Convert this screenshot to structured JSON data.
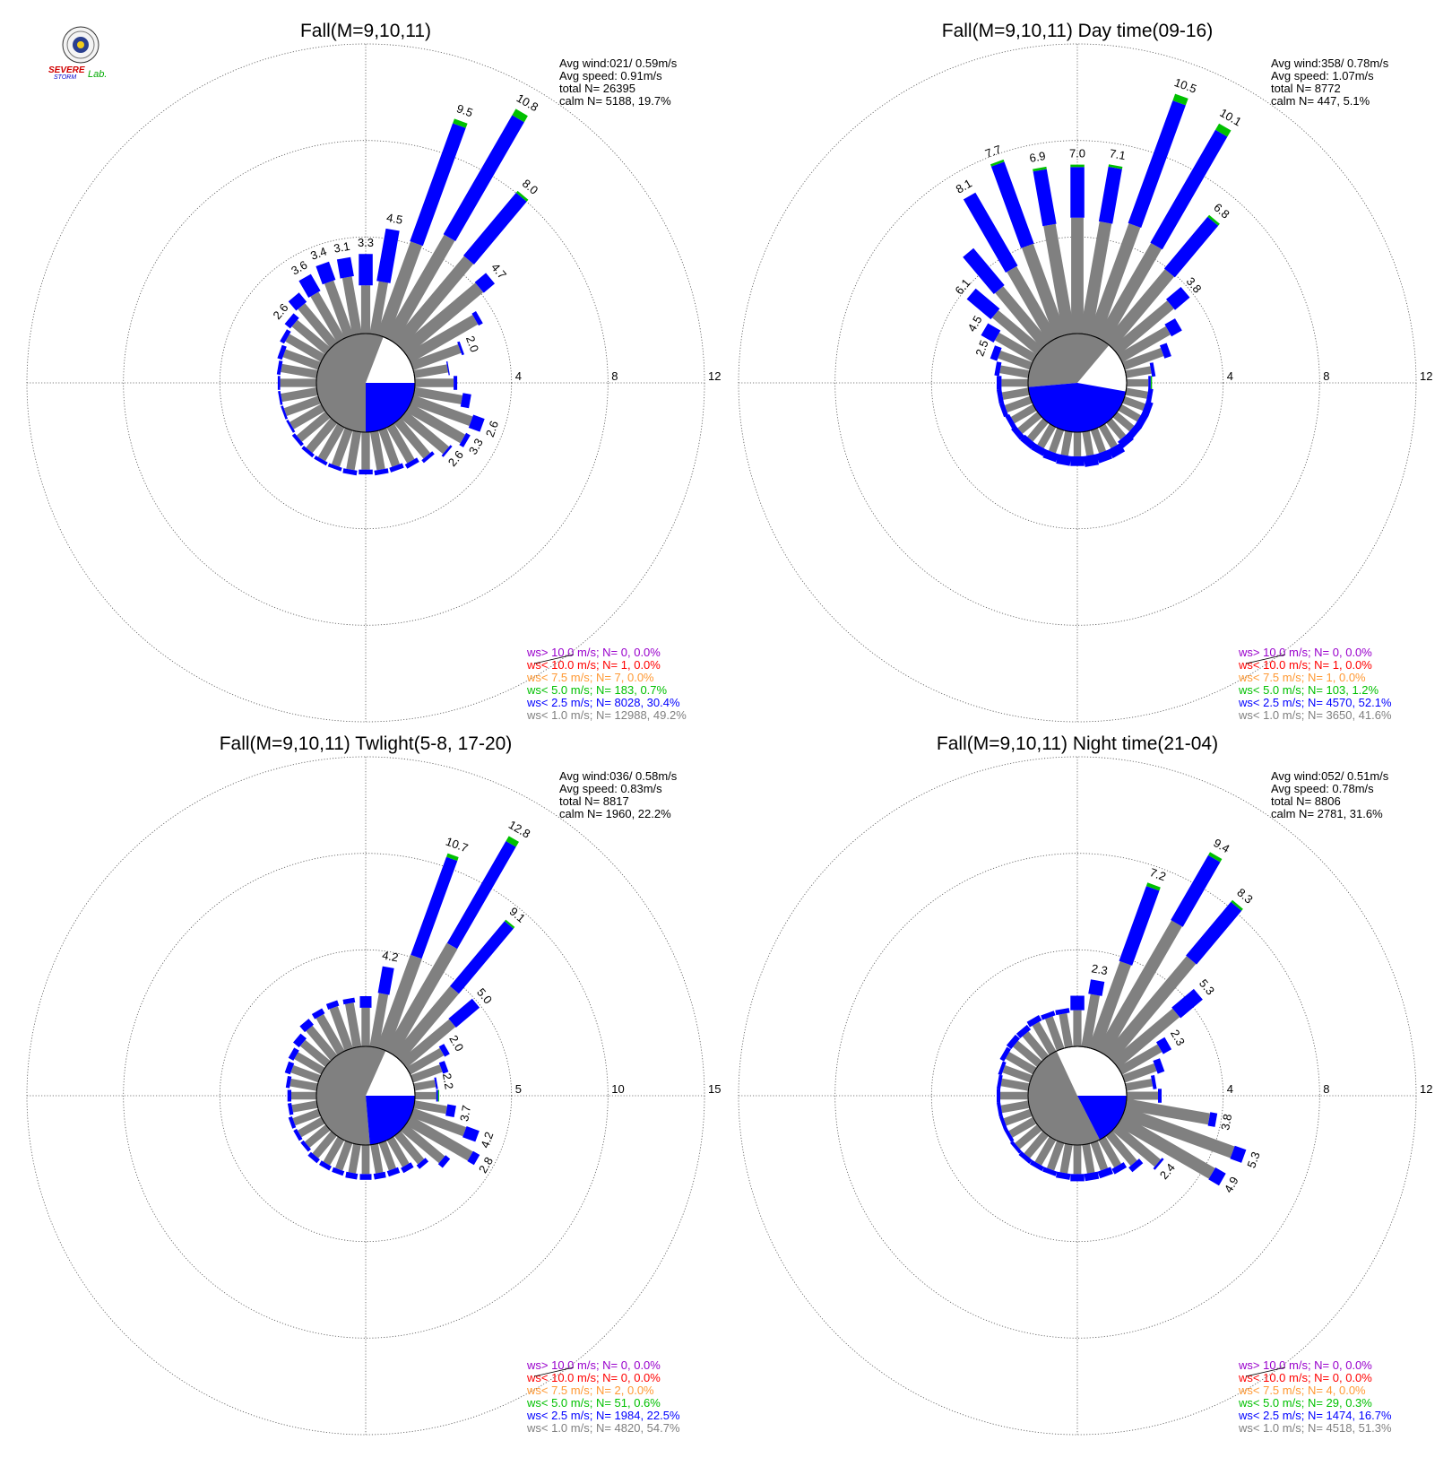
{
  "logo": {
    "line1": "SEVERE",
    "line2": "STORM",
    "line3": "Lab."
  },
  "colors": {
    "gray": "#808080",
    "blue": "#0000ff",
    "green": "#00c000",
    "orange": "#ff9933",
    "red": "#ff0000",
    "purple": "#9900cc"
  },
  "chart_data": [
    {
      "type": "windrose",
      "title": "Fall(M=9,10,11)",
      "rmax": 12,
      "ring_labels": [
        "4",
        "8",
        "12"
      ],
      "stats": [
        "Avg wind:021/ 0.59m/s",
        "Avg speed: 0.91m/s",
        "total N=      26395",
        "calm N=   5188,  19.7%"
      ],
      "legend": [
        {
          "label": "ws> 10.0 m/s; N=     0,  0.0%",
          "color": "#9900cc"
        },
        {
          "label": "ws< 10.0 m/s; N=     1,  0.0%",
          "color": "#ff0000"
        },
        {
          "label": "ws<  7.5 m/s; N=     7,  0.0%",
          "color": "#ff9933"
        },
        {
          "label": "ws<  5.0 m/s; N=   183,  0.7%",
          "color": "#00c000"
        },
        {
          "label": "ws<  2.5 m/s; N=  8028, 30.4%",
          "color": "#0000ff"
        },
        {
          "label": "ws<  1.0 m/s; N= 12988, 49.2%",
          "color": "#808080"
        }
      ],
      "directions": [
        0,
        10,
        20,
        30,
        40,
        50,
        60,
        70,
        80,
        90,
        100,
        110,
        120,
        130,
        140,
        150,
        160,
        170,
        180,
        190,
        200,
        210,
        220,
        230,
        240,
        250,
        260,
        270,
        280,
        290,
        300,
        310,
        320,
        330,
        340,
        350
      ],
      "gray": [
        2.0,
        2.2,
        4.1,
        4.9,
        4.6,
        4.1,
        3.2,
        2.1,
        1.4,
        1.6,
        2.0,
        2.6,
        2.6,
        2.3,
        1.9,
        1.7,
        1.6,
        1.6,
        1.55,
        1.6,
        1.6,
        1.6,
        1.6,
        1.55,
        1.5,
        1.5,
        1.5,
        1.5,
        1.5,
        1.55,
        1.7,
        1.8,
        2.1,
        2.2,
        2.4,
        2.4
      ],
      "blue": [
        1.3,
        2.2,
        5.2,
        5.7,
        3.4,
        0.6,
        0.2,
        0.1,
        0.05,
        0.15,
        0.35,
        0.5,
        0.2,
        0.1,
        0.15,
        0.2,
        0.2,
        0.2,
        0.2,
        0.2,
        0.15,
        0.15,
        0.15,
        0.15,
        0.1,
        0.1,
        0.1,
        0.1,
        0.15,
        0.2,
        0.2,
        0.3,
        0.5,
        0.8,
        0.8,
        0.8
      ],
      "green": [
        0,
        0,
        0.2,
        0.3,
        0.1,
        0,
        0,
        0,
        0,
        0,
        0,
        0,
        0,
        0,
        0,
        0,
        0,
        0,
        0,
        0,
        0,
        0,
        0,
        0,
        0,
        0,
        0,
        0,
        0,
        0,
        0,
        0,
        0,
        0,
        0,
        0
      ],
      "labels": [
        "3.3",
        "4.5",
        "9.5",
        "10.8",
        "8.0",
        "4.7",
        "",
        "2.0",
        "",
        "",
        "",
        "2.6",
        "3.3",
        "2.6",
        "",
        "",
        "",
        "",
        "",
        "",
        "",
        "",
        "",
        "",
        "",
        "",
        "",
        "",
        "",
        "",
        "",
        "2.6",
        "",
        "3.6",
        "3.4",
        "3.1"
      ],
      "pie_blue": [
        90,
        180
      ],
      "pie_gray": [
        180,
        381
      ]
    },
    {
      "type": "windrose",
      "title": "Fall(M=9,10,11) Day time(09-16)",
      "rmax": 12,
      "ring_labels": [
        "4",
        "8",
        "12"
      ],
      "stats": [
        "Avg wind:358/ 0.78m/s",
        "Avg speed: 1.07m/s",
        "total N=       8772",
        "calm N=    447,   5.1%"
      ],
      "legend": [
        {
          "label": "ws> 10.0 m/s; N=     0,  0.0%",
          "color": "#9900cc"
        },
        {
          "label": "ws< 10.0 m/s; N=     1,  0.0%",
          "color": "#ff0000"
        },
        {
          "label": "ws<  7.5 m/s; N=     1,  0.0%",
          "color": "#ff9933"
        },
        {
          "label": "ws<  5.0 m/s; N=   103,  1.2%",
          "color": "#00c000"
        },
        {
          "label": "ws<  2.5 m/s; N=  4570, 52.1%",
          "color": "#0000ff"
        },
        {
          "label": "ws<  1.0 m/s; N=  3650, 41.6%",
          "color": "#808080"
        }
      ],
      "directions": [
        0,
        10,
        20,
        30,
        40,
        50,
        60,
        70,
        80,
        90,
        100,
        110,
        120,
        130,
        140,
        150,
        160,
        170,
        180,
        190,
        200,
        210,
        220,
        230,
        240,
        250,
        260,
        270,
        280,
        290,
        300,
        310,
        320,
        330,
        340,
        350
      ],
      "gray": [
        4.8,
        4.7,
        4.9,
        4.5,
        3.9,
        3.0,
        2.3,
        1.7,
        1.05,
        0.9,
        0.9,
        0.9,
        0.9,
        0.9,
        0.9,
        1.0,
        1.0,
        1.0,
        1.0,
        1.0,
        1.0,
        1.0,
        1.0,
        1.05,
        1.05,
        1.1,
        1.1,
        1.1,
        1.2,
        1.4,
        1.8,
        2.4,
        3.0,
        3.4,
        4.0,
        4.6
      ],
      "blue": [
        2.1,
        2.3,
        5.4,
        5.4,
        2.8,
        0.8,
        0.5,
        0.3,
        0.15,
        0.1,
        0.2,
        0.3,
        0.3,
        0.3,
        0.35,
        0.4,
        0.4,
        0.45,
        0.4,
        0.4,
        0.35,
        0.3,
        0.3,
        0.25,
        0.2,
        0.2,
        0.2,
        0.2,
        0.2,
        0.3,
        0.6,
        1.3,
        2.0,
        3.5,
        3.6,
        2.3
      ],
      "green": [
        0.1,
        0.1,
        0.3,
        0.3,
        0.1,
        0,
        0,
        0,
        0,
        0.05,
        0,
        0,
        0,
        0,
        0,
        0,
        0,
        0,
        0,
        0,
        0,
        0,
        0,
        0,
        0,
        0,
        0,
        0,
        0,
        0,
        0,
        0,
        0,
        0,
        0.1,
        0.1
      ],
      "labels": [
        "7.0",
        "7.1",
        "10.5",
        "10.1",
        "6.8",
        "3.8",
        "",
        "",
        "",
        "",
        "",
        "",
        "",
        "",
        "",
        "",
        "",
        "",
        "",
        "",
        "",
        "",
        "",
        "",
        "",
        "",
        "",
        "",
        "",
        "2.5",
        "4.5",
        "6.1",
        "",
        "8.1",
        "7.7",
        "6.9"
      ],
      "pie_blue": [
        100,
        265
      ],
      "pie_gray": [
        265,
        400
      ]
    },
    {
      "type": "windrose",
      "title": "Fall(M=9,10,11) Twlight(5-8, 17-20)",
      "rmax": 15,
      "ring_labels": [
        "5",
        "10",
        "15"
      ],
      "stats": [
        "Avg wind:036/ 0.58m/s",
        "Avg speed: 0.83m/s",
        "total N=       8817",
        "calm N=   1960,  22.2%"
      ],
      "legend": [
        {
          "label": "ws> 10.0 m/s; N=     0,  0.0%",
          "color": "#9900cc"
        },
        {
          "label": "ws< 10.0 m/s; N=     0,  0.0%",
          "color": "#ff0000"
        },
        {
          "label": "ws<  7.5 m/s; N=     2,  0.0%",
          "color": "#ff9933"
        },
        {
          "label": "ws<  5.0 m/s; N=    51,  0.6%",
          "color": "#00c000"
        },
        {
          "label": "ws<  2.5 m/s; N=  1984, 22.5%",
          "color": "#0000ff"
        },
        {
          "label": "ws<  1.0 m/s; N=  4820, 54.7%",
          "color": "#808080"
        }
      ],
      "directions": [
        0,
        10,
        20,
        30,
        40,
        50,
        60,
        70,
        80,
        90,
        100,
        110,
        120,
        130,
        140,
        150,
        160,
        170,
        180,
        190,
        200,
        210,
        220,
        230,
        240,
        250,
        260,
        270,
        280,
        290,
        300,
        310,
        320,
        330,
        340,
        350
      ],
      "gray": [
        2.0,
        2.8,
        5.1,
        6.4,
        4.6,
        3.3,
        2.0,
        1.6,
        1.1,
        1.1,
        1.7,
        2.9,
        3.7,
        2.6,
        1.9,
        1.6,
        1.5,
        1.5,
        1.5,
        1.5,
        1.5,
        1.5,
        1.5,
        1.4,
        1.4,
        1.4,
        1.3,
        1.3,
        1.4,
        1.5,
        1.6,
        1.7,
        2.0,
        2.2,
        2.3,
        2.3
      ],
      "blue": [
        0.6,
        1.4,
        5.4,
        6.1,
        4.4,
        1.6,
        0.3,
        0.3,
        0.1,
        0.1,
        0.45,
        0.7,
        0.4,
        0.3,
        0.25,
        0.3,
        0.3,
        0.3,
        0.3,
        0.3,
        0.25,
        0.25,
        0.25,
        0.2,
        0.2,
        0.2,
        0.2,
        0.2,
        0.2,
        0.3,
        0.3,
        0.4,
        0.4,
        0.3,
        0.3,
        0.25
      ],
      "green": [
        0,
        0,
        0.2,
        0.3,
        0.1,
        0,
        0,
        0,
        0,
        0.05,
        0,
        0,
        0,
        0,
        0,
        0,
        0,
        0,
        0,
        0,
        0,
        0,
        0,
        0,
        0,
        0,
        0,
        0,
        0,
        0,
        0,
        0,
        0,
        0,
        0,
        0
      ],
      "labels": [
        "",
        "4.2",
        "10.7",
        "12.8",
        "9.1",
        "5.0",
        "2.0",
        "",
        "2.2",
        "",
        "3.7",
        "4.2",
        "2.8",
        "",
        "",
        "",
        "",
        "",
        "",
        "",
        "",
        "",
        "",
        "",
        "",
        "",
        "",
        "",
        "",
        "",
        "",
        "",
        "",
        "",
        "",
        ""
      ],
      "pie_blue": [
        90,
        175
      ],
      "pie_gray": [
        175,
        384
      ]
    },
    {
      "type": "windrose",
      "title": "Fall(M=9,10,11) Night time(21-04)",
      "rmax": 12,
      "ring_labels": [
        "4",
        "8",
        "12"
      ],
      "stats": [
        "Avg wind:052/ 0.51m/s",
        "Avg speed: 0.78m/s",
        "total N=       8806",
        "calm N=   2781,  31.6%"
      ],
      "legend": [
        {
          "label": "ws> 10.0 m/s; N=     0,  0.0%",
          "color": "#9900cc"
        },
        {
          "label": "ws< 10.0 m/s; N=     0,  0.0%",
          "color": "#ff0000"
        },
        {
          "label": "ws<  7.5 m/s; N=     4,  0.0%",
          "color": "#ff9933"
        },
        {
          "label": "ws<  5.0 m/s; N=    29,  0.3%",
          "color": "#00c000"
        },
        {
          "label": "ws<  2.5 m/s; N=  1474, 16.7%",
          "color": "#0000ff"
        },
        {
          "label": "ws<  1.0 m/s; N=  4518, 51.3%",
          "color": "#808080"
        }
      ],
      "directions": [
        0,
        10,
        20,
        30,
        40,
        50,
        60,
        70,
        80,
        90,
        100,
        110,
        120,
        130,
        140,
        150,
        160,
        170,
        180,
        190,
        200,
        210,
        220,
        230,
        240,
        250,
        260,
        270,
        280,
        290,
        300,
        310,
        320,
        330,
        340,
        350
      ],
      "gray": [
        1.5,
        2.2,
        3.8,
        6.2,
        5.3,
        3.3,
        1.9,
        1.4,
        1.1,
        1.3,
        3.5,
        4.8,
        4.4,
        2.3,
        1.6,
        1.3,
        1.2,
        1.2,
        1.2,
        1.2,
        1.2,
        1.2,
        1.2,
        1.2,
        1.15,
        1.15,
        1.15,
        1.15,
        1.15,
        1.2,
        1.3,
        1.3,
        1.3,
        1.4,
        1.4,
        1.4
      ],
      "blue": [
        0.6,
        0.6,
        3.3,
        3.1,
        2.9,
        1.2,
        0.4,
        0.3,
        0.15,
        0.15,
        0.3,
        0.5,
        0.5,
        0.1,
        0.25,
        0.25,
        0.3,
        0.3,
        0.3,
        0.25,
        0.2,
        0.2,
        0.2,
        0.15,
        0.15,
        0.15,
        0.15,
        0.15,
        0.15,
        0.15,
        0.2,
        0.25,
        0.25,
        0.25,
        0.2,
        0.2
      ],
      "green": [
        0,
        0,
        0.15,
        0.15,
        0.1,
        0,
        0,
        0,
        0,
        0,
        0,
        0,
        0,
        0,
        0,
        0,
        0,
        0,
        0,
        0,
        0,
        0,
        0,
        0,
        0,
        0,
        0,
        0,
        0,
        0,
        0,
        0,
        0,
        0,
        0,
        0
      ],
      "labels": [
        "",
        "2.3",
        "7.2",
        "9.4",
        "8.3",
        "5.3",
        "2.3",
        "",
        "",
        "",
        "3.8",
        "5.3",
        "4.9",
        "2.4",
        "",
        "",
        "",
        "",
        "",
        "",
        "",
        "",
        "",
        "",
        "",
        "",
        "",
        "",
        "",
        "",
        "",
        "",
        "",
        "",
        "",
        ""
      ],
      "pie_blue": [
        90,
        153
      ],
      "pie_gray": [
        153,
        335
      ]
    }
  ]
}
